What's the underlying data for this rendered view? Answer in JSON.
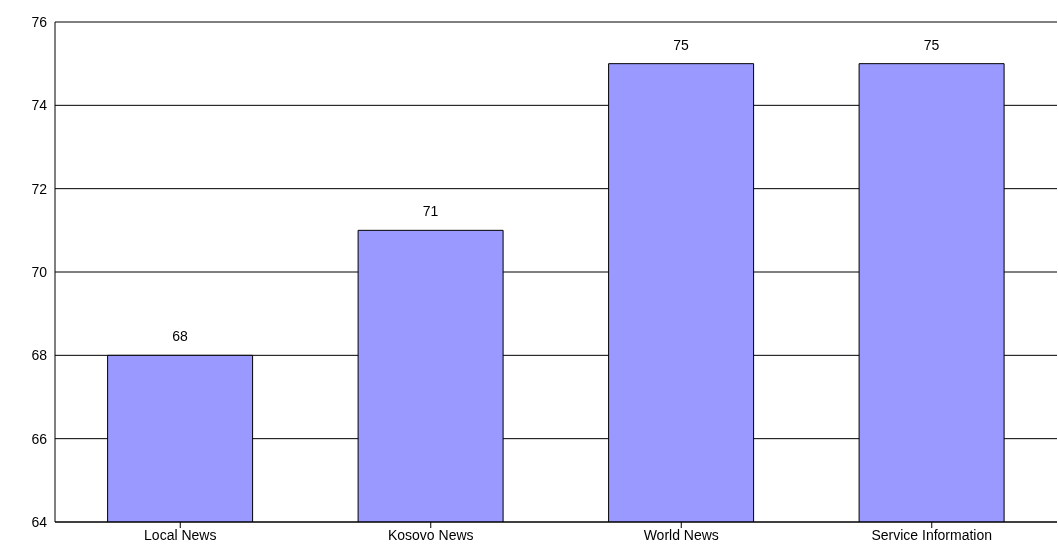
{
  "chart_data": {
    "type": "bar",
    "categories": [
      "Local News",
      "Kosovo News",
      "World News",
      "Service Information"
    ],
    "values": [
      68,
      71,
      75,
      75
    ],
    "color": "#9999ff",
    "ylim": [
      64,
      76
    ],
    "yticks": [
      64,
      66,
      68,
      70,
      72,
      74,
      76
    ],
    "grid": "y",
    "data_labels": true
  }
}
